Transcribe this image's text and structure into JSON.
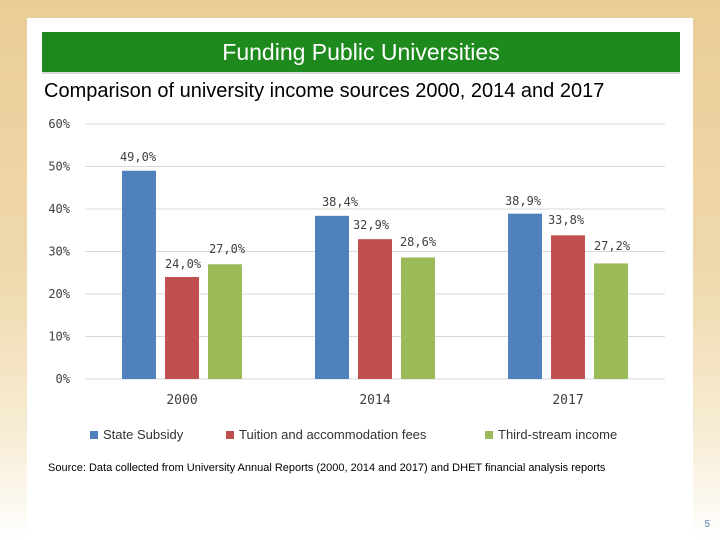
{
  "slide": {
    "title": "Funding Public Universities",
    "subtitle": "Comparison of university income sources 2000, 2014 and 2017",
    "source": "Source: Data collected from University Annual Reports (2000, 2014 and 2017) and DHET financial analysis reports",
    "page_number": "5"
  },
  "colors": {
    "title_bar": "#1e8a1e",
    "state_subsidy": "#4f81bd",
    "tuition": "#c0504d",
    "third_stream": "#9bbb59"
  },
  "chart_data": {
    "type": "bar",
    "title": "",
    "xlabel": "",
    "ylabel": "",
    "categories": [
      "2000",
      "2014",
      "2017"
    ],
    "ylim": [
      0,
      60
    ],
    "yticks": [
      0,
      10,
      20,
      30,
      40,
      50,
      60
    ],
    "ytick_labels": [
      "0%",
      "10%",
      "20%",
      "30%",
      "40%",
      "50%",
      "60%"
    ],
    "grid": true,
    "legend_position": "bottom",
    "series": [
      {
        "name": "State Subsidy",
        "color": "#4f81bd",
        "values": [
          49.0,
          38.4,
          38.9
        ],
        "labels": [
          "49,0%",
          "38,4%",
          "38,9%"
        ]
      },
      {
        "name": "Tuition and accommodation fees",
        "color": "#c0504d",
        "values": [
          24.0,
          32.9,
          33.8
        ],
        "labels": [
          "24,0%",
          "32,9%",
          "33,8%"
        ]
      },
      {
        "name": "Third-stream income",
        "color": "#9bbb59",
        "values": [
          27.0,
          28.6,
          27.2
        ],
        "labels": [
          "27,0%",
          "28,6%",
          "27,2%"
        ]
      }
    ]
  }
}
